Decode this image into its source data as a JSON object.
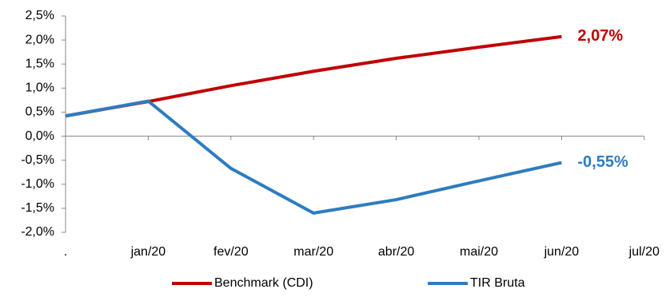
{
  "chart_data": {
    "type": "line",
    "categories": [
      ".",
      "jan/20",
      "fev/20",
      "mar/20",
      "abr/20",
      "mai/20",
      "jun/20",
      "jul/20"
    ],
    "series": [
      {
        "name": "Benchmark (CDI)",
        "color": "#c00000",
        "values": [
          0.42,
          0.72,
          1.05,
          1.35,
          1.62,
          1.85,
          2.07,
          null
        ],
        "value_labels": [
          null,
          null,
          null,
          null,
          null,
          null,
          "2,07%",
          null
        ]
      },
      {
        "name": "TIR Bruta",
        "color": "#2e7cbf",
        "values": [
          0.42,
          0.73,
          -0.67,
          -1.6,
          -1.32,
          -0.93,
          -0.55,
          null
        ],
        "value_labels": [
          null,
          null,
          null,
          null,
          null,
          null,
          "-0,55%",
          null
        ]
      }
    ],
    "ylim": [
      -2,
      2.5
    ],
    "yticks": [
      {
        "value": -2,
        "label": "-2,0%"
      },
      {
        "value": -1.5,
        "label": "-1,5%"
      },
      {
        "value": -1,
        "label": "-1,0%"
      },
      {
        "value": -0.5,
        "label": "-0,5%"
      },
      {
        "value": 0,
        "label": "0,0%"
      },
      {
        "value": 0.5,
        "label": "0,5%"
      },
      {
        "value": 1,
        "label": "1,0%"
      },
      {
        "value": 1.5,
        "label": "1,5%"
      },
      {
        "value": 2,
        "label": "2,0%"
      },
      {
        "value": 2.5,
        "label": "2,5%"
      }
    ],
    "grid": false,
    "legend": "bottom"
  }
}
